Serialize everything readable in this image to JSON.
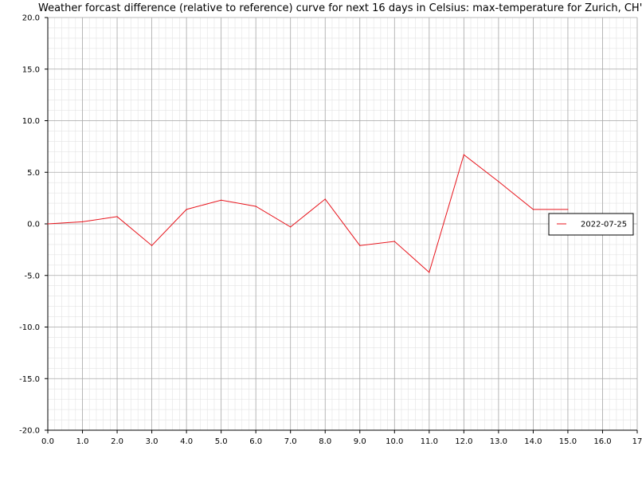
{
  "chart_data": {
    "type": "line",
    "title": "Weather forcast difference (relative to reference) curve for next 16 days in Celsius: max-temperature for Zurich, CH'",
    "xlabel": "",
    "ylabel": "",
    "xlim": [
      0,
      17
    ],
    "ylim": [
      -20,
      20
    ],
    "x_ticks": [
      "0.0",
      "1.0",
      "2.0",
      "3.0",
      "4.0",
      "5.0",
      "6.0",
      "7.0",
      "8.0",
      "9.0",
      "10.0",
      "11.0",
      "12.0",
      "13.0",
      "14.0",
      "15.0",
      "16.0",
      "17"
    ],
    "y_ticks": [
      "20.0",
      "15.0",
      "10.0",
      "5.0",
      "0.0",
      "-5.0",
      "-10.0",
      "-15.0",
      "-20.0"
    ],
    "grid": true,
    "legend_position": "right",
    "series": [
      {
        "name": "2022-07-25",
        "color": "#e8141c",
        "x": [
          0,
          1,
          2,
          3,
          4,
          5,
          6,
          7,
          8,
          9,
          10,
          11,
          12,
          13,
          14,
          15
        ],
        "values": [
          0.0,
          0.2,
          0.7,
          -2.1,
          1.4,
          2.3,
          1.7,
          -0.3,
          2.4,
          -2.1,
          -1.7,
          -4.7,
          6.7,
          4.1,
          1.4,
          1.4
        ]
      }
    ]
  }
}
